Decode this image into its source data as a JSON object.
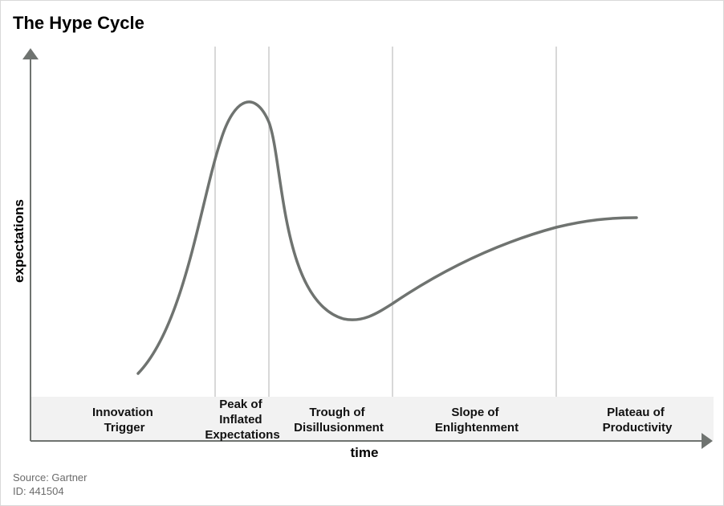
{
  "title": "The Hype Cycle",
  "axes": {
    "y_label": "expectations",
    "x_label": "time"
  },
  "phases": [
    {
      "id": "innovation-trigger",
      "lines": [
        "Innovation",
        "Trigger"
      ]
    },
    {
      "id": "peak",
      "lines": [
        "Peak of",
        "Inflated",
        "Expectations"
      ]
    },
    {
      "id": "trough",
      "lines": [
        "Trough of",
        "Disillusionment"
      ]
    },
    {
      "id": "slope",
      "lines": [
        "Slope of",
        "Enlightenment"
      ]
    },
    {
      "id": "plateau",
      "lines": [
        "Plateau of",
        "Productivity"
      ]
    }
  ],
  "footer": {
    "source": "Source: Gartner",
    "id": "ID: 441504"
  },
  "colors": {
    "curve": "#6f7370",
    "axis": "#6f7370",
    "divider": "#cccccc",
    "phase_band": "#f2f2f2"
  }
}
